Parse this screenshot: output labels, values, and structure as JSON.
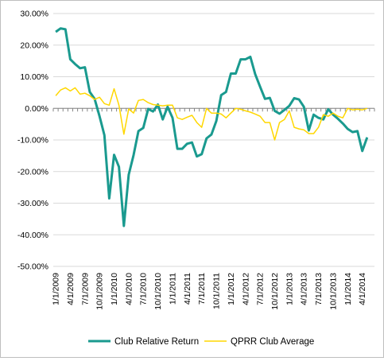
{
  "chart_data": {
    "type": "line",
    "title": "",
    "xlabel": "",
    "ylabel": "",
    "ylim": [
      -0.5,
      0.3
    ],
    "y_ticks": [
      "30.00%",
      "20.00%",
      "10.00%",
      "0.00%",
      "-10.00%",
      "-20.00%",
      "-30.00%",
      "-40.00%",
      "-50.00%"
    ],
    "x_ticks": [
      "1/1/2009",
      "4/1/2009",
      "7/1/2009",
      "10/1/2009",
      "1/1/2010",
      "4/1/2010",
      "7/1/2010",
      "10/1/2010",
      "1/1/2011",
      "4/1/2011",
      "7/1/2011",
      "10/1/2011",
      "1/1/2012",
      "4/1/2012",
      "7/1/2012",
      "10/1/2012",
      "1/1/2013",
      "4/1/2013",
      "7/1/2013",
      "10/1/2013",
      "1/1/2014",
      "4/1/2014"
    ],
    "gridlines": true,
    "legend_position": "bottom",
    "series": [
      {
        "name": "Club Relative Return",
        "color": "#1a9a8f",
        "x": [
          0,
          1,
          2,
          3,
          4,
          5,
          6,
          7,
          8,
          9,
          10,
          11,
          12,
          13,
          14,
          15,
          16,
          17,
          18,
          19,
          20,
          21,
          22,
          23,
          24,
          25,
          26,
          27,
          28,
          29,
          30,
          31,
          32,
          33,
          34,
          35,
          36,
          37,
          38,
          39,
          40,
          41,
          42,
          43,
          44,
          45,
          46,
          47,
          48,
          49,
          50,
          51,
          52,
          53,
          54,
          55,
          56,
          57,
          58,
          59,
          60,
          61,
          62,
          63,
          64,
          65
        ],
        "values": [
          0.242,
          0.253,
          0.25,
          0.155,
          0.14,
          0.127,
          0.13,
          0.052,
          0.03,
          -0.025,
          -0.085,
          -0.285,
          -0.147,
          -0.185,
          -0.372,
          -0.21,
          -0.148,
          -0.072,
          -0.062,
          -0.002,
          -0.01,
          0.012,
          -0.035,
          0.005,
          -0.03,
          -0.128,
          -0.128,
          -0.112,
          -0.108,
          -0.152,
          -0.145,
          -0.095,
          -0.083,
          -0.04,
          0.042,
          0.052,
          0.11,
          0.11,
          0.155,
          0.155,
          0.163,
          0.108,
          0.068,
          0.03,
          0.033,
          -0.008,
          -0.017,
          -0.005,
          0.008,
          0.032,
          0.028,
          0.005,
          -0.07,
          -0.02,
          -0.03,
          -0.035,
          -0.003,
          -0.02,
          -0.033,
          -0.048,
          -0.065,
          -0.075,
          -0.072,
          -0.135,
          -0.092,
          -0.087
        ],
        "x_last_shown": 64
      },
      {
        "name": "QPRR Club Average",
        "color": "#ffd700",
        "x": [
          0,
          1,
          2,
          3,
          4,
          5,
          6,
          7,
          8,
          9,
          10,
          11,
          12,
          13,
          14,
          15,
          16,
          17,
          18,
          19,
          20,
          21,
          22,
          23,
          24,
          25,
          26,
          27,
          28,
          29,
          30,
          31,
          32,
          33,
          34,
          35,
          36,
          37,
          38,
          39,
          40,
          41,
          42,
          43,
          44,
          45,
          46,
          47,
          48,
          49,
          50,
          51,
          52,
          53,
          54,
          55,
          56,
          57,
          58,
          59,
          60,
          61,
          62,
          63,
          64
        ],
        "values": [
          0.04,
          0.058,
          0.065,
          0.055,
          0.065,
          0.045,
          0.048,
          0.04,
          0.028,
          0.035,
          0.015,
          0.01,
          0.062,
          0.01,
          -0.082,
          -0.002,
          -0.015,
          0.025,
          0.028,
          0.018,
          0.012,
          0.01,
          0.008,
          0.01,
          0.01,
          -0.03,
          -0.035,
          -0.028,
          -0.022,
          -0.045,
          -0.06,
          0.0,
          -0.015,
          -0.015,
          -0.018,
          -0.03,
          -0.015,
          0.0,
          -0.003,
          -0.008,
          -0.012,
          -0.018,
          -0.025,
          -0.045,
          -0.045,
          -0.1,
          -0.045,
          -0.035,
          -0.008,
          -0.06,
          -0.065,
          -0.068,
          -0.08,
          -0.08,
          -0.06,
          -0.02,
          -0.025,
          -0.015,
          -0.025,
          -0.03,
          0.0,
          -0.005,
          -0.003,
          -0.005,
          0.0
        ]
      }
    ]
  }
}
